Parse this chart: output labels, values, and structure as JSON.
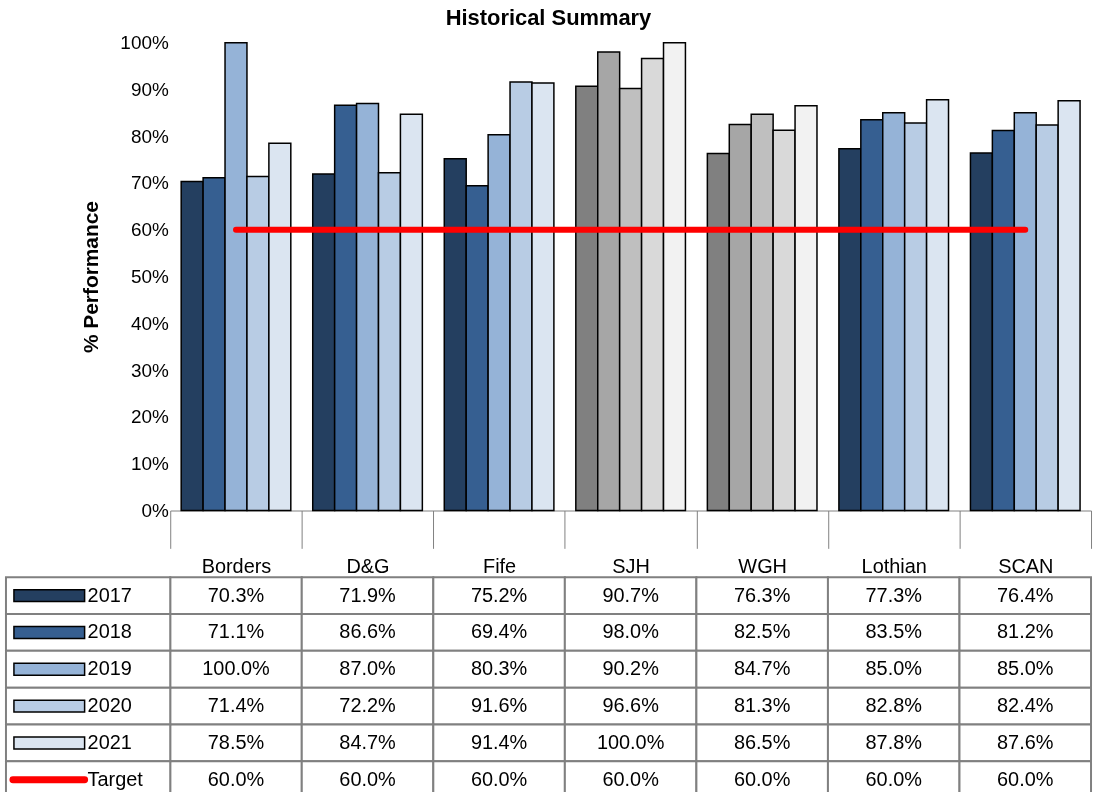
{
  "chart_data": {
    "type": "bar",
    "title": "Historical Summary",
    "ylabel": "% Performance",
    "categories": [
      "Borders",
      "D&G",
      "Fife",
      "SJH",
      "WGH",
      "Lothian",
      "SCAN"
    ],
    "ylim": [
      0,
      100
    ],
    "yticks": [
      {
        "value": 0,
        "label": "0%"
      },
      {
        "value": 10,
        "label": "10%"
      },
      {
        "value": 20,
        "label": "20%"
      },
      {
        "value": 30,
        "label": "30%"
      },
      {
        "value": 40,
        "label": "40%"
      },
      {
        "value": 50,
        "label": "50%"
      },
      {
        "value": 60,
        "label": "60%"
      },
      {
        "value": 70,
        "label": "70%"
      },
      {
        "value": 80,
        "label": "80%"
      },
      {
        "value": 90,
        "label": "90%"
      },
      {
        "value": 100,
        "label": "100%"
      }
    ],
    "series": [
      {
        "name": "2017",
        "color": "#243f60",
        "colors": [
          "#243f60",
          "#243f60",
          "#243f60",
          "#808080",
          "#808080",
          "#243f60",
          "#243f60"
        ],
        "values": [
          70.3,
          71.9,
          75.2,
          90.7,
          76.3,
          77.3,
          76.4
        ],
        "value_labels": [
          "70.3%",
          "71.9%",
          "75.2%",
          "90.7%",
          "76.3%",
          "77.3%",
          "76.4%"
        ]
      },
      {
        "name": "2018",
        "color": "#365f91",
        "colors": [
          "#365f91",
          "#365f91",
          "#365f91",
          "#a6a6a6",
          "#a6a6a6",
          "#365f91",
          "#365f91"
        ],
        "values": [
          71.1,
          86.6,
          69.4,
          98.0,
          82.5,
          83.5,
          81.2
        ],
        "value_labels": [
          "71.1%",
          "86.6%",
          "69.4%",
          "98.0%",
          "82.5%",
          "83.5%",
          "81.2%"
        ]
      },
      {
        "name": "2019",
        "color": "#95b3d7",
        "colors": [
          "#95b3d7",
          "#95b3d7",
          "#95b3d7",
          "#bfbfbf",
          "#bfbfbf",
          "#95b3d7",
          "#95b3d7"
        ],
        "values": [
          100.0,
          87.0,
          80.3,
          90.2,
          84.7,
          85.0,
          85.0
        ],
        "value_labels": [
          "100.0%",
          "87.0%",
          "80.3%",
          "90.2%",
          "84.7%",
          "85.0%",
          "85.0%"
        ]
      },
      {
        "name": "2020",
        "color": "#b8cce4",
        "colors": [
          "#b8cce4",
          "#b8cce4",
          "#b8cce4",
          "#d9d9d9",
          "#d9d9d9",
          "#b8cce4",
          "#b8cce4"
        ],
        "values": [
          71.4,
          72.2,
          91.6,
          96.6,
          81.3,
          82.8,
          82.4
        ],
        "value_labels": [
          "71.4%",
          "72.2%",
          "91.6%",
          "96.6%",
          "81.3%",
          "82.8%",
          "82.4%"
        ]
      },
      {
        "name": "2021",
        "color": "#dbe5f1",
        "colors": [
          "#dbe5f1",
          "#dbe5f1",
          "#dbe5f1",
          "#f2f2f2",
          "#f2f2f2",
          "#dbe5f1",
          "#dbe5f1"
        ],
        "values": [
          78.5,
          84.7,
          91.4,
          100.0,
          86.5,
          87.8,
          87.6
        ],
        "value_labels": [
          "78.5%",
          "84.7%",
          "91.4%",
          "100.0%",
          "86.5%",
          "87.8%",
          "87.6%"
        ]
      },
      {
        "name": "Target",
        "type": "line",
        "color": "#ff0000",
        "values": [
          60.0,
          60.0,
          60.0,
          60.0,
          60.0,
          60.0,
          60.0
        ],
        "value_labels": [
          "60.0%",
          "60.0%",
          "60.0%",
          "60.0%",
          "60.0%",
          "60.0%",
          "60.0%"
        ]
      }
    ],
    "legend": "bottom left",
    "grid": false
  }
}
